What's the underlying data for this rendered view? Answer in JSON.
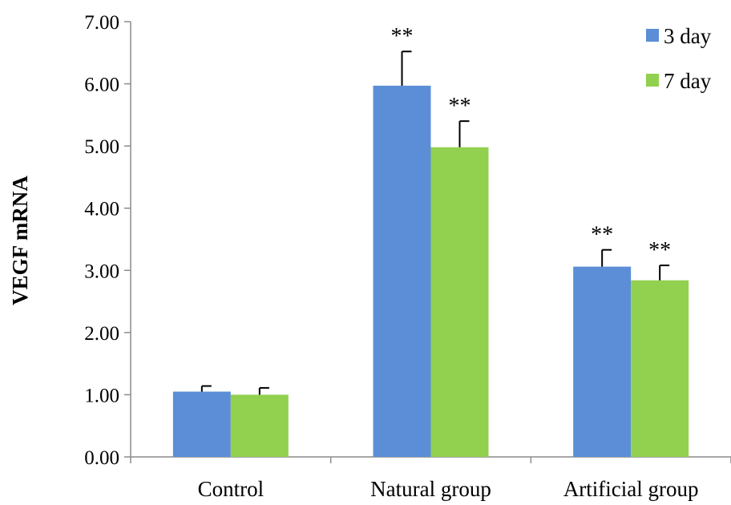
{
  "chart_data": {
    "type": "bar",
    "ylabel": "VEGF mRNA",
    "ylim": [
      0,
      7
    ],
    "yticks": [
      "0.00",
      "1.00",
      "2.00",
      "3.00",
      "4.00",
      "5.00",
      "6.00",
      "7.00"
    ],
    "categories": [
      "Control",
      "Natural group",
      "Artificial group"
    ],
    "series": [
      {
        "name": "3 day",
        "color": "#5B8ED6",
        "values": [
          1.05,
          5.97,
          3.06
        ],
        "errors": [
          0.09,
          0.55,
          0.27
        ],
        "annotations": [
          "",
          "**",
          "**"
        ]
      },
      {
        "name": "7 day",
        "color": "#92D050",
        "values": [
          1.0,
          4.98,
          2.84
        ],
        "errors": [
          0.11,
          0.42,
          0.24
        ],
        "annotations": [
          "",
          "**",
          "**"
        ]
      }
    ],
    "legend_position": "top-right",
    "grid": false
  }
}
